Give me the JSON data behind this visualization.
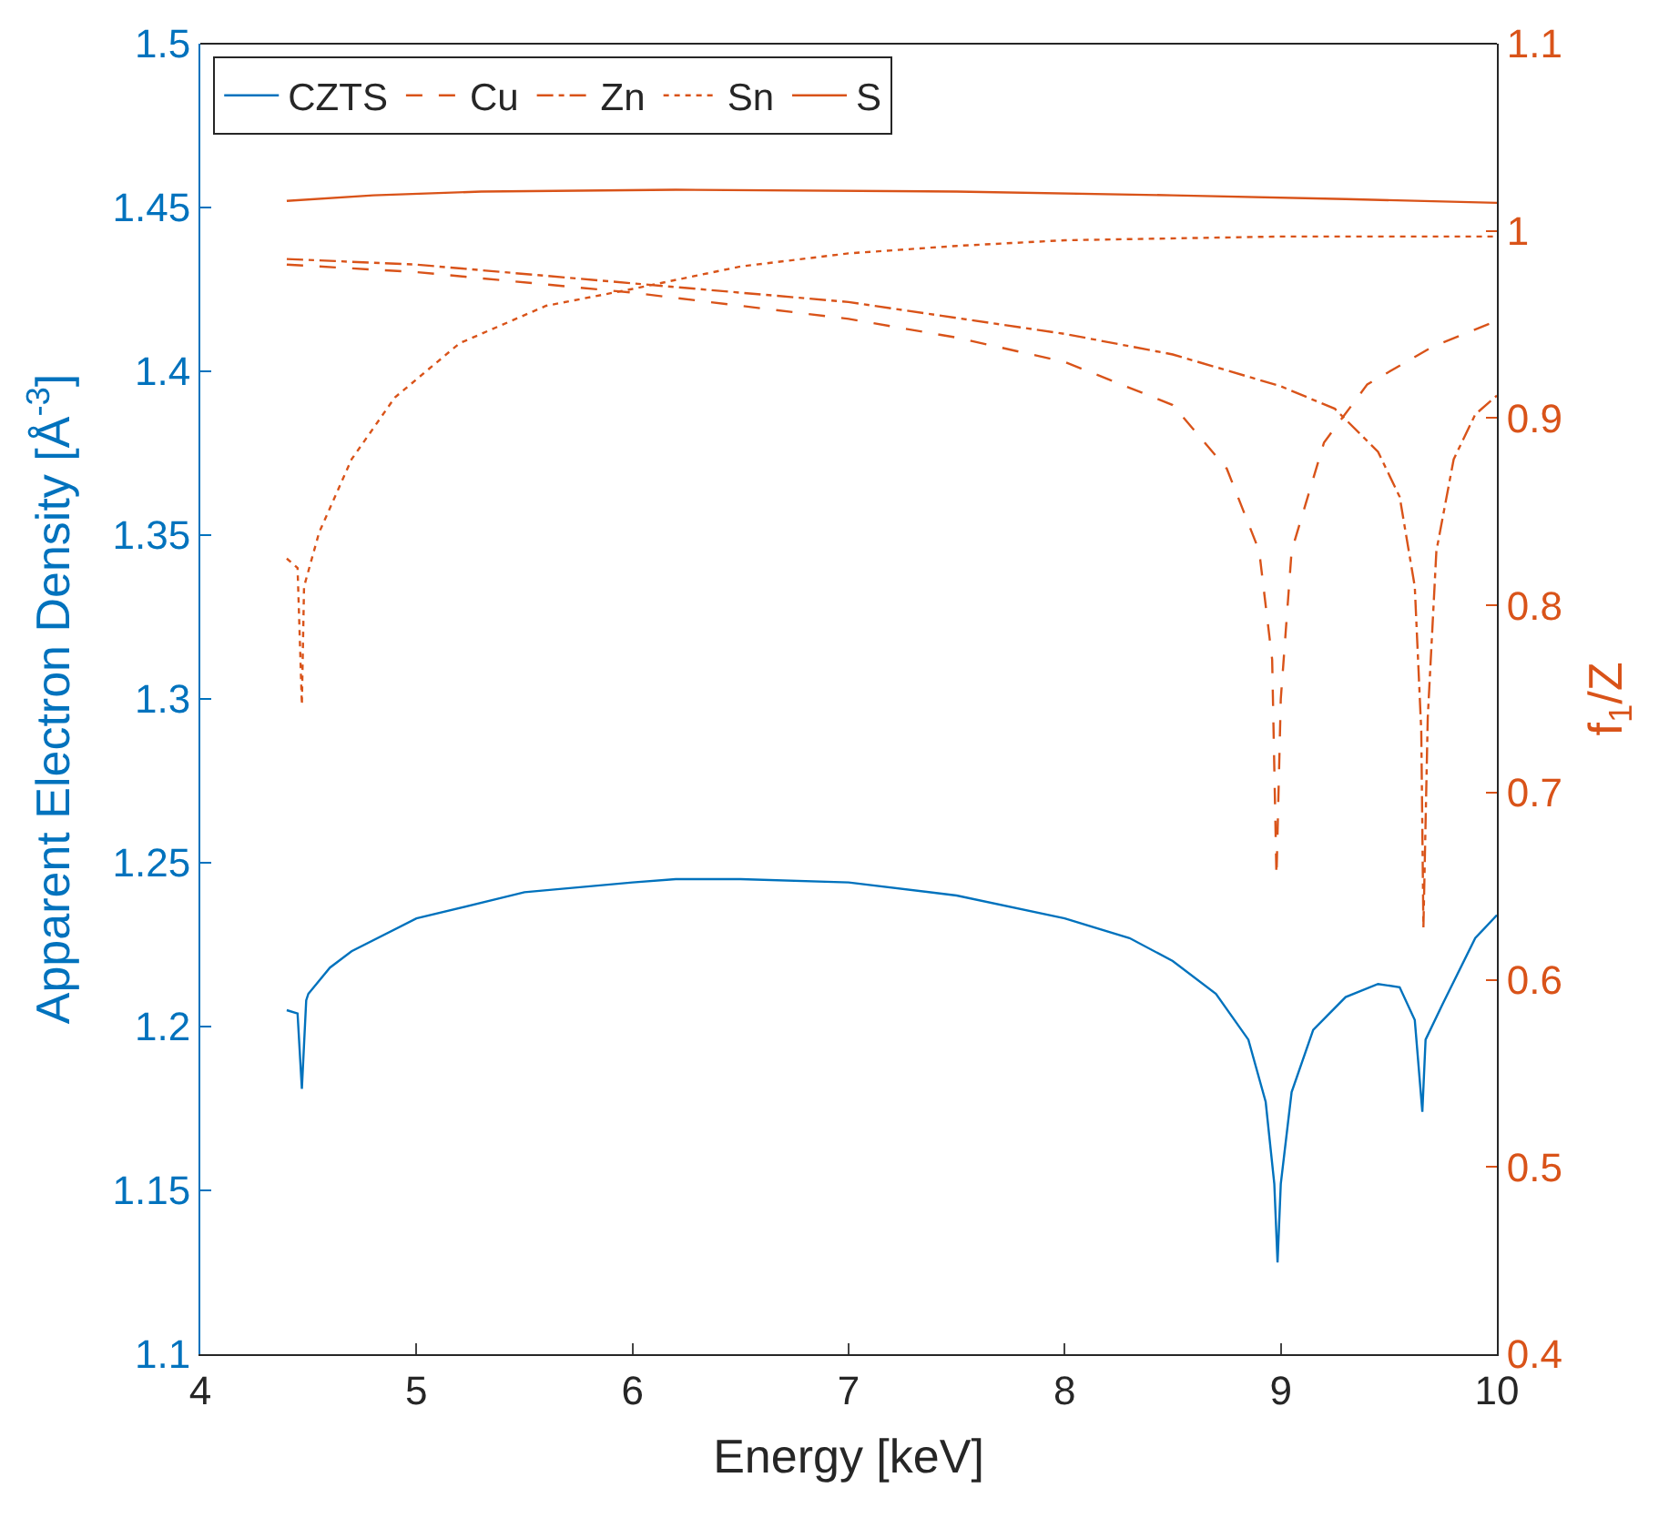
{
  "chart_data": {
    "type": "line",
    "xlabel": "Energy [keV]",
    "ylabel": "Apparent Electron Density [Å$^{-3}$]",
    "y2label": "f$_{1}$/Z",
    "xlim": [
      4,
      10
    ],
    "xticks": [
      4,
      5,
      6,
      7,
      8,
      9,
      10
    ],
    "ylim": [
      1.1,
      1.5
    ],
    "yticks": [
      1.1,
      1.15,
      1.2,
      1.25,
      1.3,
      1.35,
      1.4,
      1.45,
      1.5
    ],
    "y2lim": [
      0.4,
      1.1
    ],
    "y2ticks": [
      0.4,
      0.5,
      0.6,
      0.7,
      0.8,
      0.9,
      1,
      1.1
    ],
    "legend": "top left",
    "marker": "none",
    "series": [
      {
        "name": "CZTS",
        "color": "#0072bd",
        "line_style": "solid",
        "x": [
          4.4,
          4.45,
          4.47,
          4.49,
          4.5,
          4.6,
          4.7,
          5.0,
          5.5,
          6.0,
          6.2,
          6.5,
          7.0,
          7.5,
          8.0,
          8.3,
          8.5,
          8.7,
          8.85,
          8.93,
          8.97,
          8.985,
          9.0,
          9.05,
          9.15,
          9.3,
          9.45,
          9.55,
          9.62,
          9.655,
          9.67,
          9.75,
          9.9,
          10.0
        ],
        "values": [
          1.205,
          1.204,
          1.181,
          1.208,
          1.21,
          1.218,
          1.223,
          1.233,
          1.241,
          1.244,
          1.245,
          1.245,
          1.244,
          1.24,
          1.233,
          1.227,
          1.22,
          1.21,
          1.196,
          1.177,
          1.152,
          1.128,
          1.152,
          1.18,
          1.199,
          1.209,
          1.213,
          1.212,
          1.202,
          1.174,
          1.196,
          1.207,
          1.227,
          1.234
        ]
      },
      {
        "name": "Cu",
        "color": "#d95319",
        "line_style": "dashed",
        "axis": "y2",
        "x": [
          4.4,
          5,
          6,
          7,
          7.5,
          8,
          8.5,
          8.75,
          8.9,
          8.96,
          8.98,
          9.0,
          9.05,
          9.2,
          9.4,
          9.7,
          10
        ],
        "values": [
          0.982,
          0.978,
          0.967,
          0.953,
          0.943,
          0.93,
          0.907,
          0.873,
          0.829,
          0.771,
          0.655,
          0.75,
          0.829,
          0.887,
          0.918,
          0.938,
          0.952
        ]
      },
      {
        "name": "Zn",
        "color": "#d95319",
        "line_style": "dashdot",
        "axis": "y2",
        "x": [
          4.4,
          5,
          6,
          7,
          8,
          8.5,
          9.0,
          9.25,
          9.45,
          9.55,
          9.62,
          9.65,
          9.66,
          9.68,
          9.72,
          9.8,
          9.9,
          10
        ],
        "values": [
          0.985,
          0.982,
          0.972,
          0.962,
          0.945,
          0.934,
          0.917,
          0.905,
          0.882,
          0.858,
          0.81,
          0.733,
          0.628,
          0.74,
          0.829,
          0.878,
          0.902,
          0.912
        ]
      },
      {
        "name": "Sn",
        "color": "#d95319",
        "line_style": "dotted",
        "axis": "y2",
        "x": [
          4.4,
          4.45,
          4.47,
          4.48,
          4.55,
          4.7,
          4.9,
          5.2,
          5.6,
          6,
          6.5,
          7,
          7.5,
          8,
          9,
          10
        ],
        "values": [
          0.825,
          0.82,
          0.747,
          0.81,
          0.839,
          0.878,
          0.911,
          0.94,
          0.96,
          0.969,
          0.981,
          0.988,
          0.992,
          0.995,
          0.997,
          0.997
        ]
      },
      {
        "name": "S",
        "color": "#d95319",
        "line_style": "solid",
        "axis": "y2",
        "x": [
          4.4,
          4.8,
          5.3,
          6.2,
          7.5,
          8.5,
          9.3,
          10
        ],
        "values": [
          1.016,
          1.019,
          1.021,
          1.022,
          1.021,
          1.019,
          1.017,
          1.015
        ]
      }
    ]
  }
}
